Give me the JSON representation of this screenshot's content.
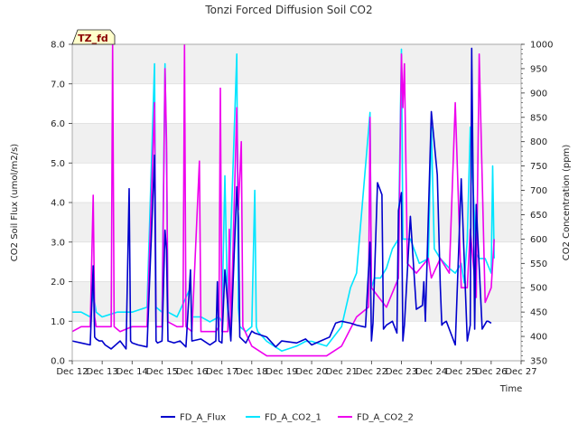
{
  "chart_data": {
    "type": "line",
    "title": "Tonzi Forced Diffusion Soil CO2",
    "badge": "TZ_fd",
    "xlabel": "Time",
    "ylabel_left": "CO2 Soil Flux (umol/m2/s)",
    "ylabel_right": "CO2 Concentration (ppm)",
    "ylim_left": [
      0,
      8
    ],
    "ylim_right": [
      350,
      1000
    ],
    "xlim": [
      12,
      27
    ],
    "x_tick_values": [
      12,
      13,
      14,
      15,
      16,
      17,
      18,
      19,
      20,
      21,
      22,
      23,
      24,
      25,
      26,
      27
    ],
    "x_tick_labels": [
      "Dec 12",
      "Dec 13",
      "Dec 14",
      "Dec 15",
      "Dec 16",
      "Dec 17",
      "Dec 18",
      "Dec 19",
      "Dec 20",
      "Dec 21",
      "Dec 22",
      "Dec 23",
      "Dec 24",
      "Dec 25",
      "Dec 26",
      "Dec 27"
    ],
    "y_left_ticks": [
      "0.0",
      "1.0",
      "2.0",
      "3.0",
      "4.0",
      "5.0",
      "6.0",
      "7.0",
      "8.0"
    ],
    "y_right_ticks": [
      "350",
      "400",
      "450",
      "500",
      "550",
      "600",
      "650",
      "700",
      "750",
      "800",
      "850",
      "900",
      "950",
      "1000"
    ],
    "grid": true,
    "legend_position": "bottom-center",
    "series": [
      {
        "name": "FD_A_Flux",
        "axis": "left",
        "color": "#0000cc",
        "x": [
          12.0,
          12.3,
          12.6,
          12.7,
          12.75,
          12.8,
          12.9,
          13.0,
          13.1,
          13.3,
          13.6,
          13.8,
          13.9,
          13.95,
          14.0,
          14.2,
          14.5,
          14.75,
          14.8,
          14.85,
          15.0,
          15.1,
          15.15,
          15.2,
          15.4,
          15.6,
          15.8,
          15.95,
          16.0,
          16.3,
          16.6,
          16.8,
          16.85,
          16.9,
          17.0,
          17.1,
          17.3,
          17.5,
          17.55,
          17.6,
          17.8,
          18.0,
          18.1,
          18.5,
          18.8,
          19.0,
          19.5,
          19.8,
          20.0,
          20.3,
          20.6,
          20.8,
          21.0,
          21.3,
          21.5,
          21.8,
          21.95,
          22.0,
          22.05,
          22.2,
          22.35,
          22.4,
          22.5,
          22.7,
          22.85,
          22.9,
          23.0,
          23.05,
          23.1,
          23.3,
          23.5,
          23.7,
          23.75,
          23.8,
          24.0,
          24.2,
          24.3,
          24.35,
          24.4,
          24.5,
          24.8,
          25.0,
          25.2,
          25.3,
          25.35,
          25.45,
          25.5,
          25.7,
          25.85,
          25.9,
          26.0
        ],
        "y": [
          0.5,
          0.45,
          0.4,
          2.4,
          0.6,
          0.55,
          0.5,
          0.5,
          0.4,
          0.3,
          0.5,
          0.3,
          4.35,
          0.5,
          0.45,
          0.4,
          0.35,
          5.2,
          0.5,
          0.45,
          0.5,
          3.3,
          2.8,
          0.5,
          0.45,
          0.5,
          0.35,
          2.3,
          0.5,
          0.55,
          0.4,
          0.5,
          2.0,
          0.5,
          0.45,
          2.3,
          0.5,
          4.4,
          3.6,
          0.6,
          0.45,
          0.75,
          0.7,
          0.6,
          0.35,
          0.5,
          0.45,
          0.55,
          0.4,
          0.5,
          0.6,
          0.95,
          1.0,
          0.95,
          0.9,
          0.85,
          3.0,
          0.5,
          0.95,
          4.5,
          4.2,
          0.8,
          0.9,
          1.0,
          0.7,
          3.8,
          4.25,
          0.5,
          0.9,
          3.65,
          1.3,
          1.4,
          2.0,
          1.0,
          6.3,
          4.7,
          1.9,
          0.9,
          0.95,
          1.0,
          0.4,
          4.6,
          0.5,
          0.9,
          7.9,
          0.8,
          3.95,
          0.8,
          1.0,
          1.0,
          0.95
        ]
      },
      {
        "name": "FD_A_CO2_1",
        "axis": "right",
        "color": "#00e5ff",
        "x": [
          12.0,
          12.3,
          12.6,
          12.7,
          12.75,
          12.8,
          13.0,
          13.5,
          13.8,
          14.0,
          14.5,
          14.75,
          14.8,
          15.0,
          15.1,
          15.15,
          15.2,
          15.5,
          15.95,
          16.0,
          16.3,
          16.6,
          16.9,
          17.0,
          17.1,
          17.2,
          17.5,
          17.55,
          17.6,
          17.8,
          18.0,
          18.1,
          18.15,
          18.2,
          18.5,
          19.0,
          19.5,
          19.8,
          20.0,
          20.5,
          21.0,
          21.3,
          21.5,
          21.95,
          22.0,
          22.1,
          22.3,
          22.5,
          22.7,
          22.9,
          23.0,
          23.05,
          23.1,
          23.3,
          23.6,
          23.9,
          24.0,
          24.1,
          24.3,
          24.6,
          24.8,
          25.0,
          25.1,
          25.2,
          25.3,
          25.5,
          25.6,
          25.8,
          26.0,
          26.05,
          26.1
        ],
        "y": [
          450,
          450,
          440,
          490,
          470,
          450,
          440,
          450,
          450,
          450,
          460,
          960,
          460,
          450,
          960,
          770,
          450,
          440,
          500,
          440,
          440,
          430,
          440,
          430,
          730,
          430,
          980,
          460,
          420,
          410,
          420,
          700,
          420,
          410,
          390,
          370,
          380,
          390,
          390,
          380,
          420,
          500,
          530,
          860,
          500,
          520,
          520,
          540,
          580,
          600,
          990,
          600,
          600,
          600,
          550,
          560,
          830,
          580,
          560,
          540,
          530,
          550,
          510,
          600,
          830,
          570,
          560,
          560,
          530,
          750,
          560
        ]
      },
      {
        "name": "FD_A_CO2_2",
        "axis": "right",
        "color": "#ee00ee",
        "x": [
          12.0,
          12.3,
          12.6,
          12.7,
          12.75,
          12.8,
          13.0,
          13.3,
          13.35,
          13.4,
          13.6,
          14.0,
          14.5,
          14.75,
          14.8,
          15.0,
          15.1,
          15.15,
          15.2,
          15.5,
          15.7,
          15.75,
          15.8,
          16.0,
          16.25,
          16.3,
          16.5,
          16.8,
          16.9,
          16.95,
          17.0,
          17.2,
          17.25,
          17.3,
          17.5,
          17.55,
          17.65,
          17.7,
          18.0,
          18.5,
          19.0,
          19.5,
          20.0,
          20.5,
          21.0,
          21.5,
          21.9,
          21.95,
          22.0,
          22.5,
          22.9,
          23.0,
          23.05,
          23.1,
          23.2,
          23.5,
          23.9,
          24.0,
          24.3,
          24.6,
          24.8,
          25.0,
          25.2,
          25.3,
          25.5,
          25.6,
          25.8,
          26.0,
          26.1
        ],
        "y": [
          410,
          420,
          420,
          690,
          440,
          420,
          420,
          420,
          1000,
          420,
          410,
          420,
          420,
          880,
          420,
          420,
          950,
          800,
          430,
          420,
          420,
          1000,
          420,
          410,
          760,
          410,
          410,
          410,
          420,
          910,
          410,
          410,
          620,
          410,
          870,
          660,
          800,
          420,
          380,
          360,
          360,
          360,
          360,
          360,
          380,
          440,
          460,
          850,
          500,
          460,
          520,
          980,
          870,
          960,
          550,
          530,
          560,
          520,
          560,
          530,
          880,
          500,
          500,
          620,
          480,
          980,
          470,
          500,
          600
        ]
      }
    ]
  }
}
